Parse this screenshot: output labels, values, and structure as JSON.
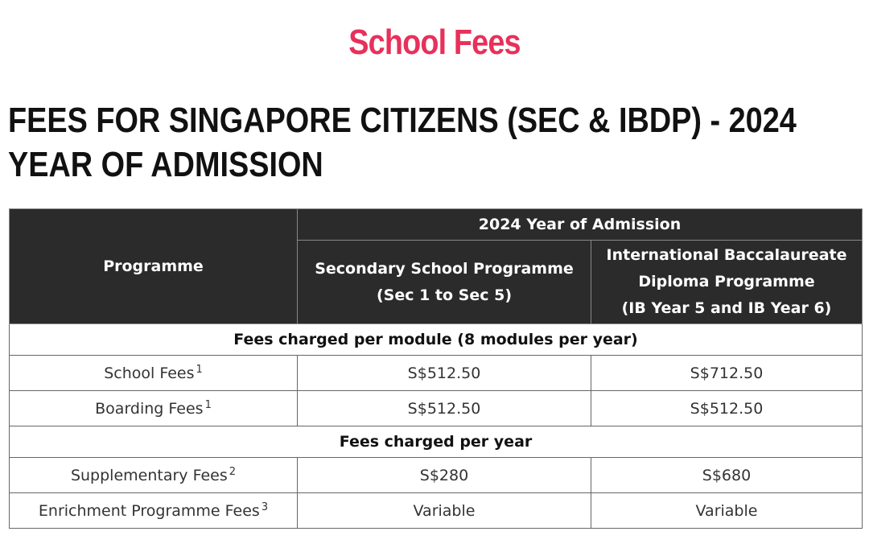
{
  "page": {
    "title": "School Fees",
    "title_color": "#e8305a"
  },
  "section": {
    "heading": "FEES FOR SINGAPORE CITIZENS (SEC & IBDP) - 2024 YEAR OF ADMISSION"
  },
  "table": {
    "header": {
      "programme_label": "Programme",
      "admission_group": "2024 Year of Admission",
      "sec_line1": "Secondary School Programme",
      "sec_line2": "(Sec 1 to Sec 5)",
      "ib_line1": "International Baccalaureate",
      "ib_line2": "Diploma Programme",
      "ib_line3": "(IB Year 5 and IB Year 6)"
    },
    "header_bg": "#2b2b2b",
    "sections": [
      {
        "title": "Fees charged per module (8 modules per year)",
        "rows": [
          {
            "label": "School Fees",
            "note": "1",
            "sec": "S$512.50",
            "ib": "S$712.50"
          },
          {
            "label": "Boarding Fees",
            "note": "1",
            "sec": "S$512.50",
            "ib": "S$512.50"
          }
        ]
      },
      {
        "title": "Fees charged per year",
        "rows": [
          {
            "label": "Supplementary Fees",
            "note": "2",
            "sec": "S$280",
            "ib": "S$680"
          },
          {
            "label": "Enrichment Programme Fees",
            "note": "3",
            "sec": "Variable",
            "ib": "Variable"
          }
        ]
      }
    ]
  }
}
